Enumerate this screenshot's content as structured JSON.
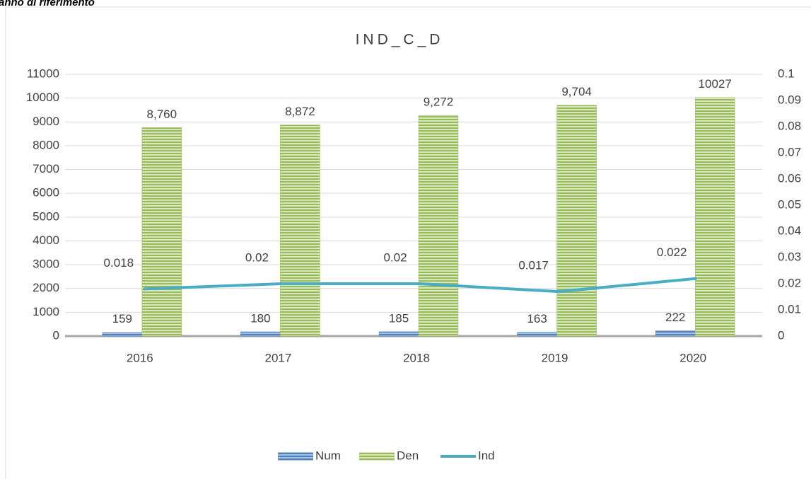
{
  "caption": "anno di riferimento",
  "chart_data": {
    "type": "bar-line",
    "title": "IND_C_D",
    "categories": [
      "2016",
      "2017",
      "2018",
      "2019",
      "2020"
    ],
    "series": [
      {
        "name": "Num",
        "type": "bar",
        "color": "#4f81bd",
        "values": [
          159,
          180,
          185,
          163,
          222
        ]
      },
      {
        "name": "Den",
        "type": "bar",
        "color": "#9bbb59",
        "values": [
          8760,
          8872,
          9272,
          9704,
          10027
        ],
        "value_labels": [
          "8,760",
          "8,872",
          "9,272",
          "9,704",
          "10027"
        ]
      },
      {
        "name": "Ind",
        "type": "line",
        "axis": "y2",
        "color": "#4bacc6",
        "values": [
          0.018,
          0.02,
          0.02,
          0.017,
          0.022
        ]
      }
    ],
    "ylim": [
      0,
      11000
    ],
    "yticks": [
      0,
      1000,
      2000,
      3000,
      4000,
      5000,
      6000,
      7000,
      8000,
      9000,
      10000,
      11000
    ],
    "y2lim": [
      0,
      0.1
    ],
    "y2ticks": [
      0,
      0.01,
      0.02,
      0.03,
      0.04,
      0.05,
      0.06,
      0.07,
      0.08,
      0.09,
      0.1
    ],
    "grid": true,
    "legend": "bottom"
  }
}
